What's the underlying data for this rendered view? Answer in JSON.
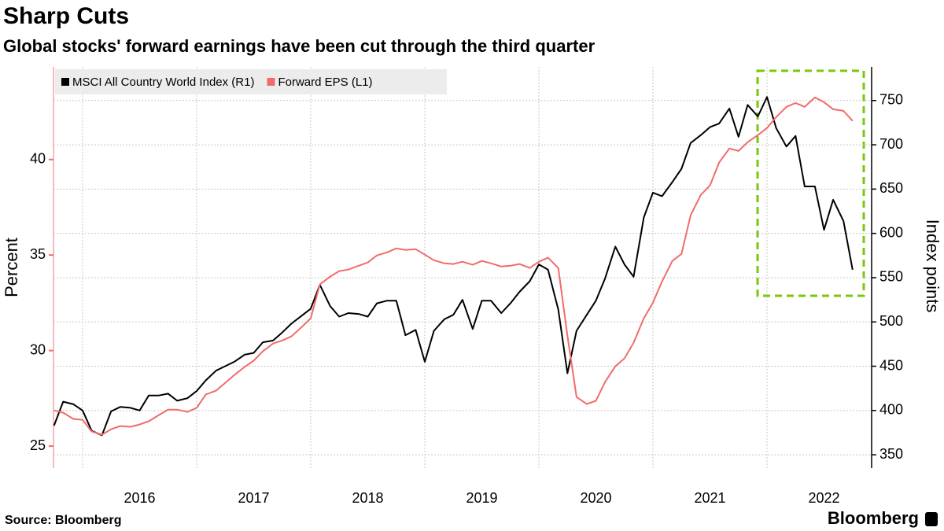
{
  "chart_data": {
    "type": "line",
    "title": "Sharp Cuts",
    "subtitle": "Global stocks' forward earnings have been cut through the third quarter",
    "source": "Source: Bloomberg",
    "brand": "Bloomberg",
    "ylabel": "Percent",
    "y2label": "Index points",
    "x": [
      2015.75,
      2015.83,
      2015.92,
      2016,
      2016.08,
      2016.17,
      2016.25,
      2016.33,
      2016.42,
      2016.5,
      2016.58,
      2016.67,
      2016.75,
      2016.83,
      2016.92,
      2017,
      2017.08,
      2017.17,
      2017.25,
      2017.33,
      2017.42,
      2017.5,
      2017.58,
      2017.67,
      2017.75,
      2017.83,
      2017.92,
      2018,
      2018.08,
      2018.17,
      2018.25,
      2018.33,
      2018.42,
      2018.5,
      2018.58,
      2018.67,
      2018.75,
      2018.83,
      2018.92,
      2019,
      2019.08,
      2019.17,
      2019.25,
      2019.33,
      2019.42,
      2019.5,
      2019.58,
      2019.67,
      2019.75,
      2019.83,
      2019.92,
      2020,
      2020.08,
      2020.17,
      2020.25,
      2020.33,
      2020.42,
      2020.5,
      2020.58,
      2020.67,
      2020.75,
      2020.83,
      2020.92,
      2021,
      2021.08,
      2021.17,
      2021.25,
      2021.33,
      2021.42,
      2021.5,
      2021.58,
      2021.67,
      2021.75,
      2021.83,
      2021.92,
      2022,
      2022.08,
      2022.17,
      2022.25,
      2022.33,
      2022.42,
      2022.5,
      2022.58,
      2022.67,
      2022.75
    ],
    "series": [
      {
        "name": "MSCI All Country World Index (R1)",
        "color": "#000000",
        "axis": "y2",
        "values": [
          383,
          410,
          407,
          400,
          377,
          372,
          399,
          404,
          403,
          400,
          417,
          417,
          419,
          411,
          414,
          422,
          434,
          445,
          450,
          455,
          463,
          465,
          477,
          479,
          488,
          498,
          507,
          515,
          542,
          518,
          506,
          510,
          509,
          506,
          521,
          524,
          524,
          485,
          491,
          455,
          490,
          503,
          508,
          525,
          492,
          524,
          524,
          510,
          521,
          534,
          546,
          565,
          559,
          514,
          442,
          490,
          508,
          524,
          549,
          585,
          565,
          551,
          618,
          646,
          642,
          658,
          673,
          702,
          711,
          720,
          724,
          741,
          709,
          745,
          732,
          754,
          719,
          698,
          710,
          653,
          653,
          604,
          638,
          614,
          559
        ]
      },
      {
        "name": "Forward EPS (L1)",
        "color": "#f26b6b",
        "values": [
          26.87,
          26.75,
          26.42,
          26.38,
          25.76,
          25.6,
          25.88,
          26.05,
          26.01,
          26.13,
          26.3,
          26.63,
          26.91,
          26.91,
          26.79,
          27.0,
          27.7,
          27.9,
          28.31,
          28.72,
          29.14,
          29.47,
          29.96,
          30.37,
          30.53,
          30.74,
          31.23,
          31.69,
          33.46,
          33.87,
          34.16,
          34.24,
          34.44,
          34.61,
          34.98,
          35.14,
          35.35,
          35.27,
          35.31,
          35.02,
          34.73,
          34.57,
          34.53,
          34.65,
          34.49,
          34.69,
          34.57,
          34.4,
          34.44,
          34.53,
          34.32,
          34.65,
          34.86,
          34.32,
          30.78,
          27.57,
          27.2,
          27.37,
          28.35,
          29.18,
          29.59,
          30.41,
          31.69,
          32.51,
          33.62,
          34.69,
          35.06,
          37.08,
          38.15,
          38.64,
          39.84,
          40.58,
          40.45,
          40.91,
          41.28,
          41.65,
          42.22,
          42.76,
          42.96,
          42.76,
          43.25,
          43.0,
          42.63,
          42.55,
          42.02
        ]
      }
    ],
    "xlim": [
      2015.745,
      2022.917
    ],
    "xticks": [
      {
        "value": 2016.5,
        "label": "2016"
      },
      {
        "value": 2017.5,
        "label": "2017"
      },
      {
        "value": 2018.5,
        "label": "2018"
      },
      {
        "value": 2019.5,
        "label": "2019"
      },
      {
        "value": 2020.5,
        "label": "2020"
      },
      {
        "value": 2021.5,
        "label": "2021"
      },
      {
        "value": 2022.5,
        "label": "2022"
      }
    ],
    "xgrid": [
      2016,
      2017,
      2018,
      2019,
      2020,
      2021,
      2022
    ],
    "ylim": [
      23.85,
      44.85
    ],
    "yticks": [
      25,
      30,
      35,
      40
    ],
    "y2lim": [
      335,
      788
    ],
    "y2ticks": [
      350,
      400,
      450,
      500,
      550,
      600,
      650,
      700,
      750
    ],
    "grid": true,
    "legend": "top-left"
  }
}
